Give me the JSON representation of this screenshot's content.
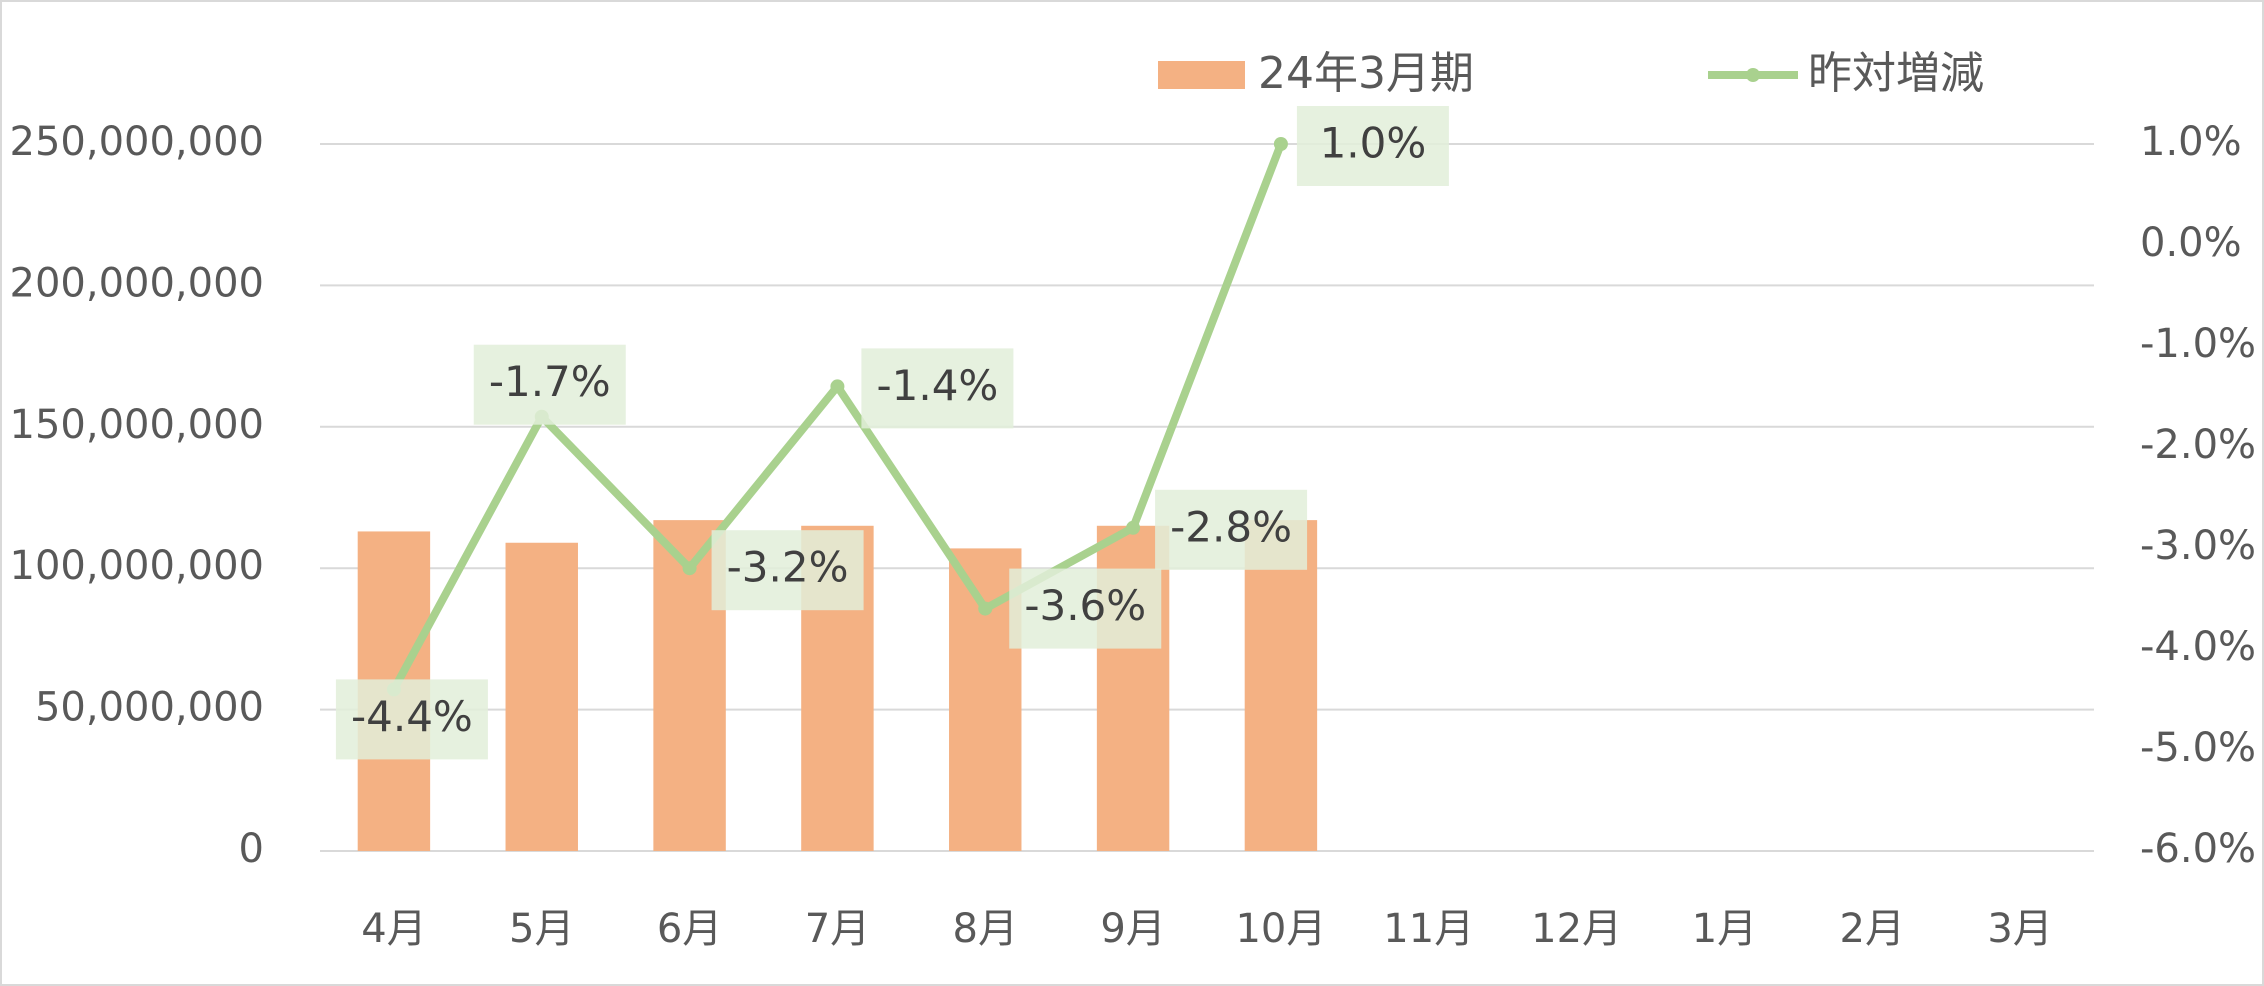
{
  "chart_data": {
    "type": "combo",
    "categories": [
      "4月",
      "5月",
      "6月",
      "7月",
      "8月",
      "9月",
      "10月",
      "11月",
      "12月",
      "1月",
      "2月",
      "3月"
    ],
    "series": [
      {
        "name": "24年3月期",
        "type": "bar",
        "color": "#f4b183",
        "values": [
          113000000,
          109000000,
          117000000,
          115000000,
          107000000,
          115000000,
          117000000,
          null,
          null,
          null,
          null,
          null
        ]
      },
      {
        "name": "昨対増減",
        "type": "line",
        "axis": "y2",
        "color": "#a9d18e",
        "label_color": "#e2efd9",
        "values": [
          -4.4,
          -1.7,
          -3.2,
          -1.4,
          -3.6,
          -2.8,
          1.0,
          null,
          null,
          null,
          null,
          null
        ],
        "value_labels": [
          "-4.4%",
          "-1.7%",
          "-3.2%",
          "-1.4%",
          "-3.6%",
          "-2.8%",
          "1.0%",
          null,
          null,
          null,
          null,
          null
        ]
      }
    ],
    "ylim": [
      0,
      250000000
    ],
    "yticks": [
      0,
      {
        "value": 50000000,
        "label": "50,000,000"
      },
      {
        "value": 100000000,
        "label": "100,000,000"
      },
      {
        "value": 150000000,
        "label": "150,000,000"
      },
      {
        "value": 200000000,
        "label": "200,000,000"
      },
      {
        "value": 250000000,
        "label": "250,000,000"
      }
    ],
    "y2lim": [
      -6,
      1
    ],
    "y2ticks": [
      {
        "value": -6,
        "label": "-6.0%"
      },
      {
        "value": -5,
        "label": "-5.0%"
      },
      {
        "value": -4,
        "label": "-4.0%"
      },
      {
        "value": -3,
        "label": "-3.0%"
      },
      {
        "value": -2,
        "label": "-2.0%"
      },
      {
        "value": -1,
        "label": "-1.0%"
      },
      {
        "value": 0,
        "label": "0.0%"
      },
      {
        "value": 1,
        "label": "1.0%"
      }
    ],
    "grid": true,
    "legend": "top"
  }
}
